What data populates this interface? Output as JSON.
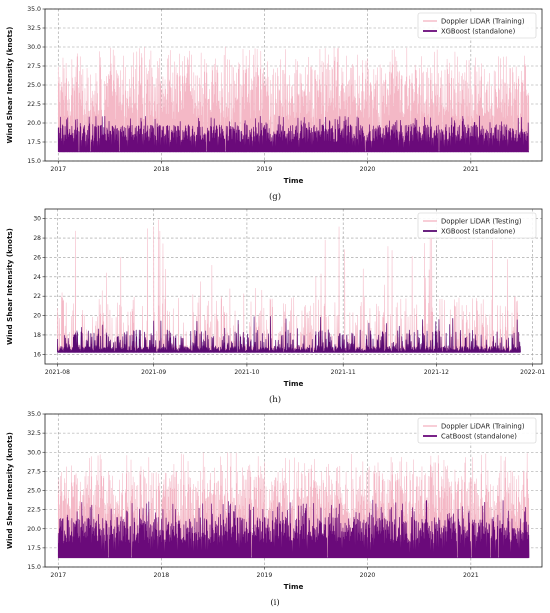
{
  "chart_data": [
    {
      "type": "line",
      "panel_label": "(g)",
      "xlabel": "Time",
      "ylabel": "Wind Shear Intensity (knots)",
      "x_range": [
        "2016-11-15",
        "2021-09-10"
      ],
      "x_ticks": [
        "2017",
        "2018",
        "2019",
        "2020",
        "2021"
      ],
      "ylim": [
        15.0,
        35.0
      ],
      "y_ticks": [
        "15.0",
        "17.5",
        "20.0",
        "22.5",
        "25.0",
        "27.5",
        "30.0",
        "32.5",
        "35.0"
      ],
      "grid": true,
      "legend_placement": "top-right",
      "data_span": [
        "2017-01-01",
        "2021-07-25"
      ],
      "series": [
        {
          "name": "Doppler LiDAR (Training)",
          "color": "#f4b8c6",
          "baseline": 16.5,
          "typical_max": 27.5,
          "peak_max": 30.0
        },
        {
          "name": "XGBoost (standalone)",
          "color": "#6a0a7a",
          "baseline": 16.2,
          "typical_max": 19.8,
          "peak_max": 21.0
        }
      ]
    },
    {
      "type": "line",
      "panel_label": "(h)",
      "xlabel": "Time",
      "ylabel": "Wind Shear Intensity (knots)",
      "x_range": [
        "2021-07-28",
        "2022-01-04"
      ],
      "x_ticks": [
        "2021-08",
        "2021-09",
        "2021-10",
        "2021-11",
        "2021-12",
        "2022-01"
      ],
      "ylim": [
        15.0,
        31.0
      ],
      "y_ticks": [
        "16",
        "18",
        "20",
        "22",
        "24",
        "26",
        "28",
        "30"
      ],
      "grid": true,
      "legend_placement": "top-right",
      "data_span": [
        "2021-08-01",
        "2021-12-28"
      ],
      "series": [
        {
          "name": "Doppler LiDAR (Testing)",
          "color": "#f4b8c6",
          "baseline": 16.3,
          "typical_max": 22.0,
          "peak_max": 30.0
        },
        {
          "name": "XGBoost (standalone)",
          "color": "#5a0a72",
          "baseline": 16.2,
          "typical_max": 18.5,
          "peak_max": 20.0
        }
      ]
    },
    {
      "type": "line",
      "panel_label": "(i)",
      "xlabel": "Time",
      "ylabel": "Wind Shear Intensity (knots)",
      "x_range": [
        "2016-11-15",
        "2021-09-10"
      ],
      "x_ticks": [
        "2017",
        "2018",
        "2019",
        "2020",
        "2021"
      ],
      "ylim": [
        15.0,
        35.0
      ],
      "y_ticks": [
        "15.0",
        "17.5",
        "20.0",
        "22.5",
        "25.0",
        "27.5",
        "30.0",
        "32.5",
        "35.0"
      ],
      "grid": true,
      "legend_placement": "top-right",
      "data_span": [
        "2017-01-01",
        "2021-07-25"
      ],
      "series": [
        {
          "name": "Doppler LiDAR (Training)",
          "color": "#f4b8c6",
          "baseline": 16.5,
          "typical_max": 27.5,
          "peak_max": 30.0
        },
        {
          "name": "CatBoost (standalone)",
          "color": "#6a0a7a",
          "baseline": 16.2,
          "typical_max": 21.5,
          "peak_max": 23.8
        }
      ]
    }
  ]
}
